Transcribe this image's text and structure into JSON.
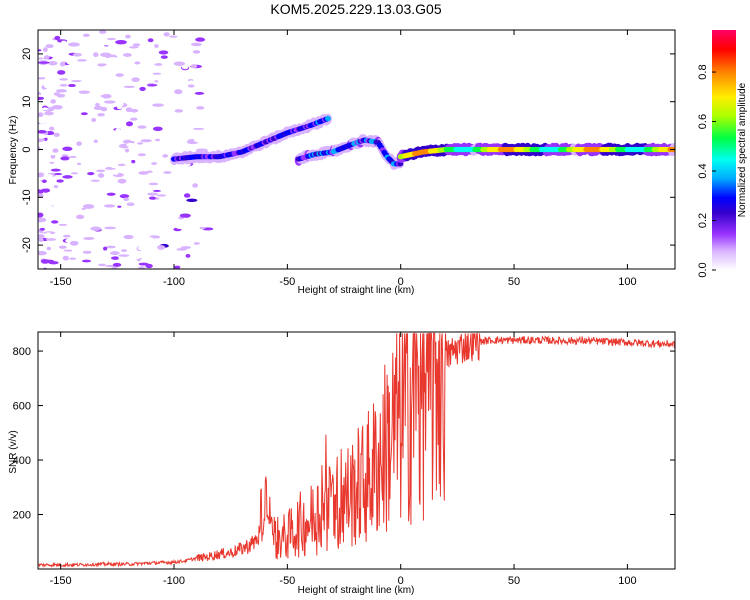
{
  "title": "KOM5.2025.229.13.03.G05",
  "chart_data": [
    {
      "type": "heatmap",
      "name": "spectrogram",
      "xlabel": "Height of straight line (km)",
      "ylabel": "Frequency (Hz)",
      "xlim": [
        -160,
        121
      ],
      "ylim": [
        -25,
        25
      ],
      "xticks": [
        -150,
        -100,
        -50,
        0,
        50,
        100
      ],
      "yticks": [
        -20,
        -10,
        0,
        10,
        20
      ],
      "colorbar": {
        "label": "Normalized spectral amplitude",
        "range": [
          0,
          0.97
        ],
        "ticks": [
          0.0,
          0.2,
          0.4,
          0.6,
          0.8
        ],
        "colors": [
          "#ffffff",
          "#d9b3ff",
          "#9933ff",
          "#3300cc",
          "#0000ff",
          "#00aaff",
          "#00ffee",
          "#00ff44",
          "#aaff00",
          "#ffee00",
          "#ff8800",
          "#ff0000",
          "#ff0066"
        ]
      },
      "ridge_segments": [
        {
          "x": [
            -100,
            -90,
            -80,
            -70,
            -60,
            -50,
            -40,
            -32
          ],
          "freq": [
            -2,
            -1.5,
            -1.5,
            -0.5,
            1.5,
            3.5,
            5,
            6.5
          ],
          "amplitude": 0.35
        },
        {
          "x": [
            -45,
            -38,
            -30,
            -22,
            -16,
            -10,
            -6,
            -3,
            0
          ],
          "freq": [
            -2,
            -1,
            -0.5,
            1,
            2,
            1.5,
            -1.5,
            -3,
            -3
          ],
          "amplitude": 0.4
        },
        {
          "x": [
            0,
            10,
            20,
            30,
            40,
            50,
            60,
            70,
            80,
            90,
            100,
            110,
            121
          ],
          "freq": [
            -1.5,
            -0.5,
            0,
            0,
            0,
            0,
            0,
            0,
            0,
            0,
            0,
            0,
            0
          ],
          "amplitude": 0.85
        }
      ]
    },
    {
      "type": "line",
      "name": "snr",
      "xlabel": "Height of straight line (km)",
      "ylabel": "SNR (v/v)",
      "xlim": [
        -160,
        121
      ],
      "ylim": [
        0,
        870
      ],
      "xticks": [
        -150,
        -100,
        -50,
        0,
        50,
        100
      ],
      "yticks": [
        200,
        400,
        600,
        800
      ],
      "color": "#e8372d",
      "series": [
        {
          "name": "SNR",
          "x": [
            -160,
            -150,
            -140,
            -130,
            -120,
            -110,
            -100,
            -95,
            -90,
            -85,
            -80,
            -75,
            -70,
            -65,
            -62,
            -58,
            -55,
            -50,
            -45,
            -40,
            -35,
            -30,
            -25,
            -20,
            -15,
            -10,
            -5,
            0,
            5,
            10,
            15,
            20,
            25,
            30,
            35,
            40,
            45,
            50,
            60,
            70,
            80,
            90,
            100,
            110,
            121
          ],
          "y": [
            15,
            15,
            16,
            18,
            18,
            22,
            25,
            30,
            40,
            45,
            55,
            60,
            75,
            95,
            130,
            160,
            110,
            120,
            160,
            180,
            210,
            230,
            260,
            290,
            330,
            390,
            480,
            560,
            620,
            690,
            740,
            780,
            810,
            825,
            835,
            840,
            840,
            840,
            840,
            838,
            838,
            835,
            832,
            828,
            825
          ]
        }
      ],
      "annotations": []
    }
  ]
}
